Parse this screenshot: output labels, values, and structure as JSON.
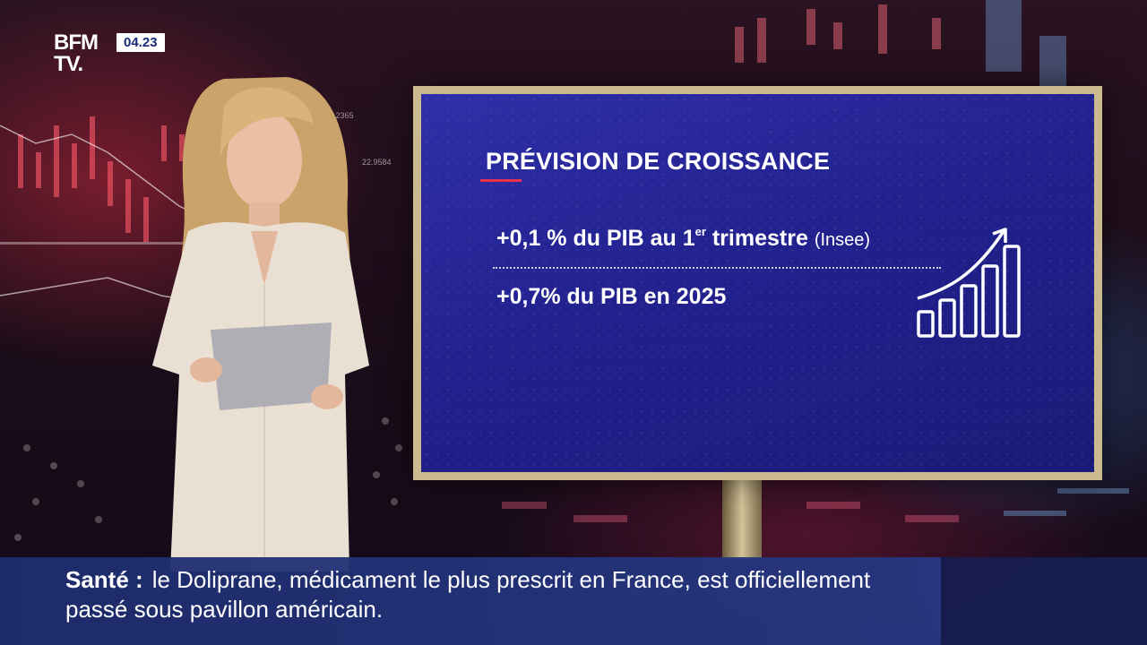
{
  "channel": {
    "logo_line1": "BFM",
    "logo_line2": "TV.",
    "time": "04.23"
  },
  "background": {
    "number1": "28.2365",
    "number2": "22.9584"
  },
  "screen": {
    "title": "PRÉVISION DE CROISSANCE",
    "line1_main": "+0,1 % du PIB au 1",
    "line1_sup": "er",
    "line1_tail": " trimestre",
    "line1_source": "(Insee)",
    "line2": "+0,7% du PIB en 2025",
    "icon": "growth-chart-icon"
  },
  "ticker": {
    "category": "Santé :",
    "text": "le Doliprane, médicament le plus prescrit en France, est officiellement passé sous pavillon américain."
  },
  "colors": {
    "screen_blue": "#22218e",
    "accent_red": "#e8314a",
    "ticker_blue": "#26378a",
    "frame_gold": "#cbb98f"
  }
}
